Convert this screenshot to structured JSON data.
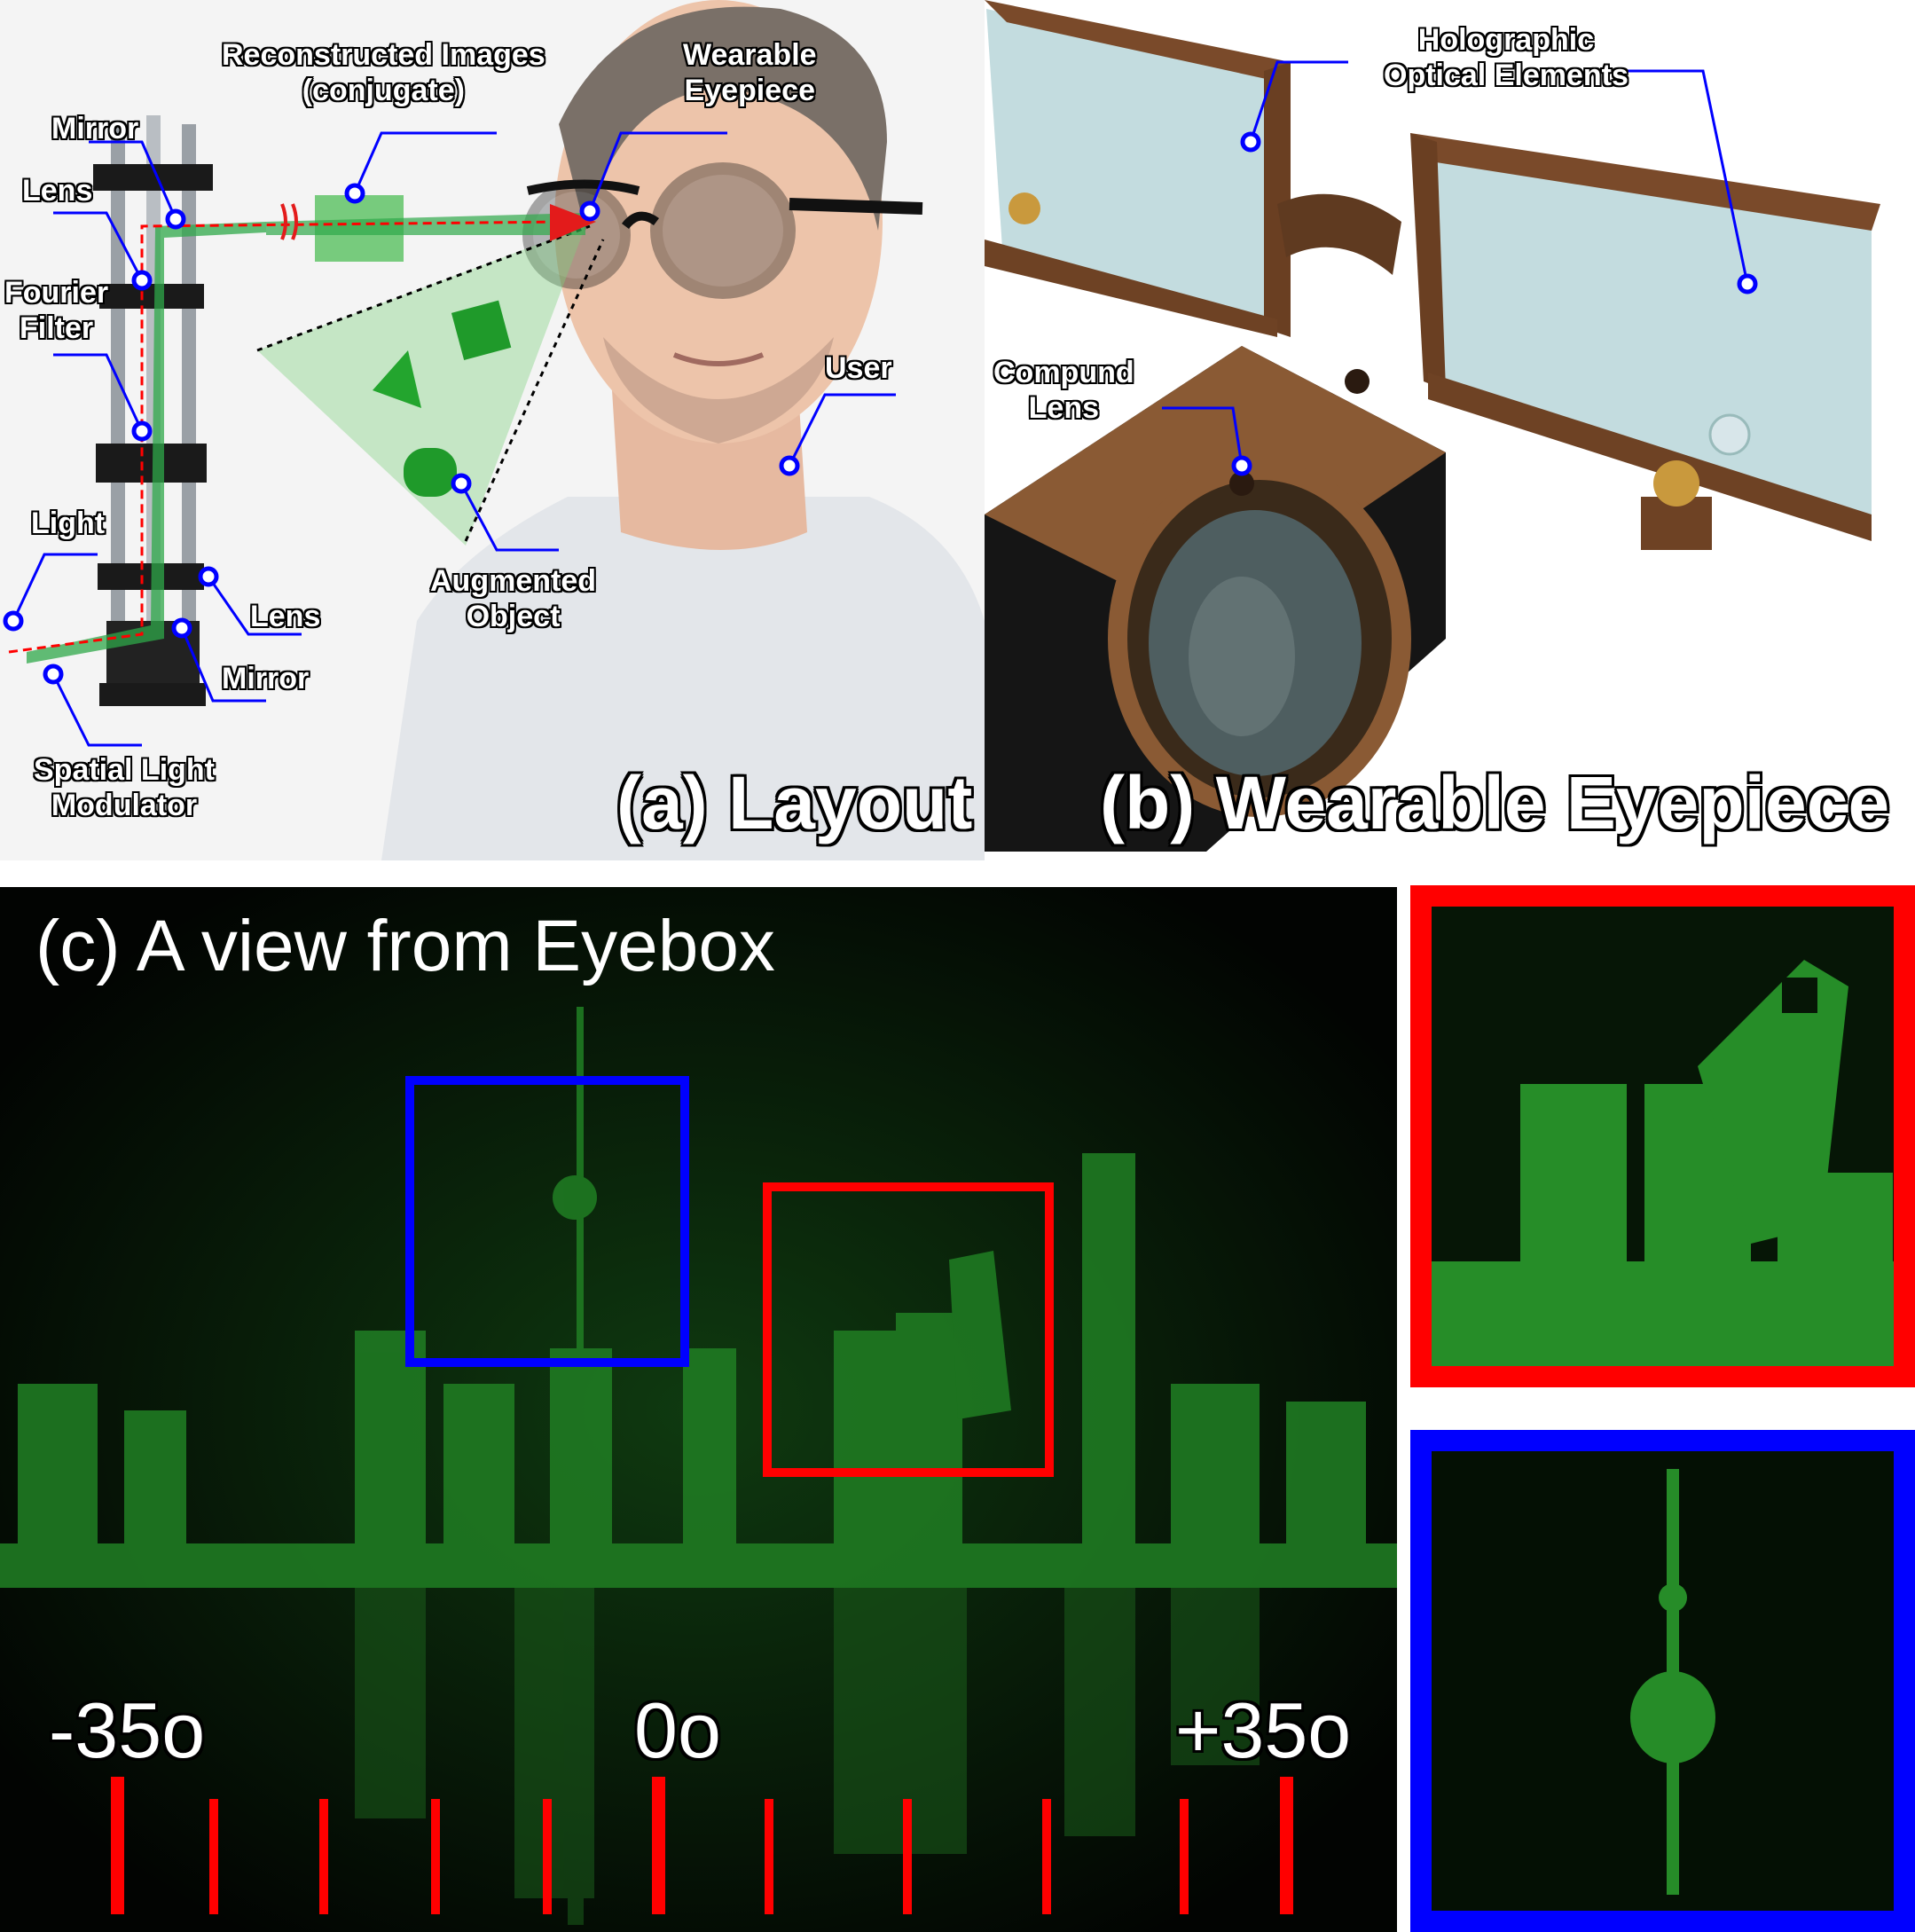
{
  "panel_a": {
    "title": "(a) Layout",
    "labels": {
      "reconstructed_1": "Reconstructed Images",
      "reconstructed_2": "(conjugate)",
      "wearable_1": "Wearable",
      "wearable_2": "Eyepiece",
      "mirror_top": "Mirror",
      "lens_top": "Lens",
      "fourier_1": "Fourier",
      "fourier_2": "Filter",
      "user": "User",
      "light": "Light",
      "lens_bottom": "Lens",
      "mirror_bottom": "Mirror",
      "augmented_1": "Augmented",
      "augmented_2": "Object",
      "slm_1": "Spatial Light",
      "slm_2": "Modulator"
    }
  },
  "panel_b": {
    "title": "(b) Wearable Eyepiece",
    "labels": {
      "hoe_1": "Holographic",
      "hoe_2": "Optical Elements",
      "compound_1": "Compund",
      "compound_2": "Lens"
    }
  },
  "panel_c": {
    "title": "(c) A view from Eyebox",
    "scale": {
      "left": "-35o",
      "center": "0o",
      "right": "+35o"
    }
  },
  "colors": {
    "callout_line": "#0000ff",
    "hologram_green": "#2bb32b",
    "tick_red": "#ff0000",
    "inset_red": "#ff0000",
    "inset_blue": "#0000ff"
  }
}
